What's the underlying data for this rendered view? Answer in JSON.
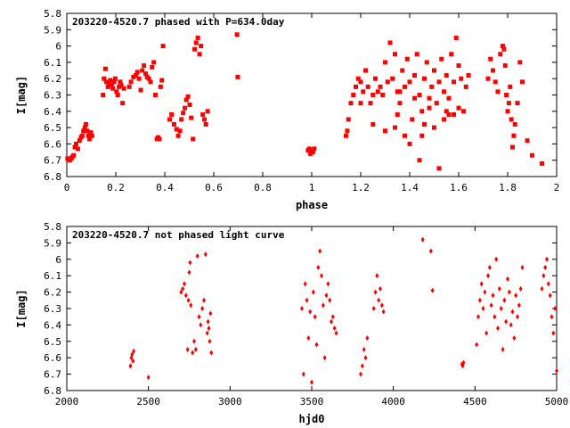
{
  "colors": {
    "points": "#ff0000",
    "axes": "#000000",
    "background": "#ffffff"
  },
  "chart_data": [
    {
      "type": "scatter",
      "title": "203220-4520.7 phased with P=634.0day",
      "xlabel": "phase",
      "ylabel": "I[mag]",
      "xlim": [
        0,
        2
      ],
      "ylim": [
        5.8,
        6.8
      ],
      "y_inverted": true,
      "xticks": [
        0,
        0.2,
        0.4,
        0.6,
        0.8,
        1,
        1.2,
        1.4,
        1.6,
        1.8,
        2
      ],
      "xtick_labels": [
        "0",
        "0.2",
        "0.4",
        "0.6",
        "0.8",
        "1",
        "1.2",
        "1.4",
        "1.6",
        "1.8",
        "2"
      ],
      "yticks": [
        5.8,
        5.9,
        6,
        6.1,
        6.2,
        6.3,
        6.4,
        6.5,
        6.6,
        6.7,
        6.8
      ],
      "ytick_labels": [
        "5.8",
        "5.9",
        "6",
        "6.1",
        "6.2",
        "6.3",
        "6.4",
        "6.5",
        "6.6",
        "6.7",
        "6.8"
      ],
      "marker": "square",
      "x": [
        0.003,
        0.008,
        0.012,
        0.018,
        0.022,
        0.028,
        0.033,
        0.038,
        0.045,
        0.052,
        0.058,
        0.063,
        0.068,
        0.074,
        0.078,
        0.083,
        0.088,
        0.093,
        0.098,
        0.103,
        0.148,
        0.152,
        0.158,
        0.162,
        0.168,
        0.173,
        0.178,
        0.183,
        0.188,
        0.193,
        0.198,
        0.203,
        0.208,
        0.213,
        0.218,
        0.222,
        0.228,
        0.233,
        0.255,
        0.262,
        0.272,
        0.282,
        0.288,
        0.295,
        0.302,
        0.308,
        0.315,
        0.322,
        0.328,
        0.335,
        0.342,
        0.348,
        0.355,
        0.362,
        0.368,
        0.373,
        0.378,
        0.383,
        0.388,
        0.393,
        0.42,
        0.428,
        0.438,
        0.448,
        0.455,
        0.462,
        0.468,
        0.475,
        0.482,
        0.488,
        0.495,
        0.502,
        0.508,
        0.515,
        0.522,
        0.528,
        0.535,
        0.542,
        0.548,
        0.555,
        0.562,
        0.568,
        0.575,
        0.695,
        0.698,
        0.985,
        0.99,
        0.995,
        1.0,
        1.005,
        1.01,
        1.14,
        1.145,
        1.15,
        1.16,
        1.17,
        1.18,
        1.19,
        1.2,
        1.21,
        1.22,
        1.23,
        1.24,
        1.25,
        1.26,
        1.27,
        1.28,
        1.29,
        1.3,
        1.31,
        1.32,
        1.33,
        1.34,
        1.35,
        1.36,
        1.37,
        1.38,
        1.39,
        1.4,
        1.41,
        1.42,
        1.43,
        1.44,
        1.45,
        1.46,
        1.47,
        1.48,
        1.49,
        1.5,
        1.51,
        1.52,
        1.53,
        1.54,
        1.55,
        1.56,
        1.57,
        1.58,
        1.59,
        1.6,
        1.61,
        1.62,
        1.63,
        1.64,
        1.2,
        1.25,
        1.3,
        1.35,
        1.4,
        1.45,
        1.5,
        1.55,
        1.6,
        1.36,
        1.42,
        1.48,
        1.54,
        1.58,
        1.44,
        1.52,
        1.38,
        1.46,
        1.56,
        1.34,
        1.72,
        1.73,
        1.74,
        1.75,
        1.76,
        1.77,
        1.78,
        1.785,
        1.79,
        1.795,
        1.8,
        1.805,
        1.81,
        1.815,
        1.82,
        1.825,
        1.83,
        1.84,
        1.85,
        1.86,
        1.88,
        1.9,
        1.94
      ],
      "y": [
        6.69,
        6.7,
        6.7,
        6.69,
        6.68,
        6.67,
        6.62,
        6.6,
        6.63,
        6.58,
        6.56,
        6.55,
        6.52,
        6.5,
        6.48,
        6.52,
        6.55,
        6.57,
        6.53,
        6.55,
        6.3,
        6.2,
        6.14,
        6.22,
        6.25,
        6.23,
        6.21,
        6.24,
        6.26,
        6.22,
        6.2,
        6.28,
        6.3,
        6.25,
        6.22,
        6.24,
        6.35,
        6.26,
        6.25,
        6.22,
        6.19,
        6.18,
        6.16,
        6.2,
        6.27,
        6.15,
        6.12,
        6.17,
        6.19,
        6.2,
        6.22,
        6.13,
        6.1,
        6.3,
        6.57,
        6.56,
        6.57,
        6.25,
        6.21,
        6.0,
        6.45,
        6.42,
        6.48,
        6.51,
        6.55,
        6.52,
        6.45,
        6.41,
        6.38,
        6.33,
        6.31,
        6.36,
        6.44,
        6.57,
        6.02,
        5.98,
        5.95,
        6.05,
        6.0,
        6.42,
        6.45,
        6.48,
        6.4,
        5.93,
        6.19,
        6.64,
        6.63,
        6.66,
        6.64,
        6.65,
        6.63,
        6.55,
        6.52,
        6.45,
        6.35,
        6.3,
        6.25,
        6.2,
        6.22,
        6.28,
        6.15,
        6.25,
        6.35,
        6.3,
        6.2,
        6.28,
        6.25,
        6.3,
        6.1,
        6.22,
        5.98,
        6.2,
        6.05,
        6.28,
        6.35,
        6.15,
        6.25,
        6.08,
        6.22,
        6.45,
        6.18,
        6.05,
        6.3,
        6.4,
        6.2,
        6.1,
        6.32,
        6.25,
        6.15,
        6.35,
        6.22,
        6.08,
        6.28,
        6.18,
        6.32,
        6.05,
        6.42,
        5.95,
        6.12,
        6.2,
        6.4,
        6.25,
        6.18,
        6.35,
        6.48,
        6.52,
        6.42,
        6.6,
        6.55,
        6.5,
        6.4,
        6.38,
        6.28,
        6.32,
        6.38,
        6.45,
        6.22,
        6.7,
        6.75,
        6.55,
        6.48,
        6.42,
        6.5,
        6.2,
        6.08,
        6.15,
        6.22,
        6.28,
        6.05,
        6.0,
        6.02,
        6.12,
        6.3,
        6.4,
        6.35,
        6.25,
        6.45,
        6.62,
        6.55,
        6.48,
        6.35,
        6.1,
        6.22,
        6.58,
        6.67,
        6.72
      ]
    },
    {
      "type": "scatter",
      "title": "203220-4520.7 not phased light curve",
      "xlabel": "hjd0",
      "ylabel": "I[mag]",
      "xlim": [
        2000,
        5000
      ],
      "ylim": [
        5.8,
        6.8
      ],
      "y_inverted": true,
      "xticks": [
        2000,
        2500,
        3000,
        3500,
        4000,
        4500,
        5000
      ],
      "xtick_labels": [
        "2000",
        "2500",
        "3000",
        "3500",
        "4000",
        "4500",
        "5000"
      ],
      "yticks": [
        5.8,
        5.9,
        6,
        6.1,
        6.2,
        6.3,
        6.4,
        6.5,
        6.6,
        6.7,
        6.8
      ],
      "ytick_labels": [
        "5.8",
        "5.9",
        "6",
        "6.1",
        "6.2",
        "6.3",
        "6.4",
        "6.5",
        "6.6",
        "6.7",
        "6.8"
      ],
      "marker": "diamond",
      "x": [
        2390,
        2395,
        2400,
        2405,
        2410,
        2500,
        2700,
        2710,
        2720,
        2730,
        2740,
        2745,
        2750,
        2755,
        2760,
        2770,
        2780,
        2790,
        2800,
        2810,
        2820,
        2830,
        2840,
        2850,
        2860,
        2865,
        2870,
        2875,
        2880,
        2885,
        3440,
        3450,
        3460,
        3470,
        3480,
        3490,
        3500,
        3510,
        3520,
        3530,
        3540,
        3550,
        3560,
        3570,
        3580,
        3590,
        3600,
        3610,
        3620,
        3630,
        3640,
        3650,
        3800,
        3810,
        3820,
        3830,
        3840,
        3880,
        3890,
        3900,
        3910,
        3920,
        3930,
        3940,
        4180,
        4230,
        4240,
        4420,
        4425,
        4430,
        4510,
        4520,
        4530,
        4540,
        4550,
        4560,
        4570,
        4580,
        4590,
        4600,
        4610,
        4620,
        4630,
        4640,
        4650,
        4660,
        4670,
        4680,
        4690,
        4700,
        4710,
        4720,
        4730,
        4740,
        4750,
        4760,
        4770,
        4780,
        4790,
        4910,
        4920,
        4930,
        4940,
        4950,
        4960,
        4970,
        4980,
        4990,
        5000
      ],
      "y": [
        6.65,
        6.6,
        6.58,
        6.62,
        6.56,
        6.72,
        6.2,
        6.18,
        6.15,
        6.22,
        6.55,
        6.25,
        6.08,
        6.02,
        6.28,
        6.57,
        6.5,
        6.55,
        5.98,
        6.35,
        6.4,
        6.3,
        6.25,
        5.97,
        6.45,
        6.38,
        6.42,
        6.5,
        6.33,
        6.57,
        6.3,
        6.7,
        6.15,
        6.25,
        6.48,
        6.32,
        6.75,
        6.2,
        6.35,
        6.52,
        6.05,
        5.95,
        6.1,
        6.28,
        6.6,
        6.22,
        6.15,
        6.25,
        6.38,
        6.35,
        6.42,
        6.45,
        6.7,
        6.65,
        6.55,
        6.6,
        6.48,
        6.3,
        6.2,
        6.1,
        6.25,
        6.18,
        6.28,
        6.32,
        5.88,
        5.95,
        6.19,
        6.64,
        6.65,
        6.63,
        6.52,
        6.35,
        6.25,
        6.15,
        6.3,
        6.2,
        6.45,
        6.1,
        6.05,
        6.28,
        6.22,
        6.35,
        6.0,
        6.42,
        6.18,
        6.3,
        6.55,
        6.25,
        6.38,
        6.12,
        6.2,
        6.4,
        6.32,
        6.48,
        6.22,
        6.35,
        6.28,
        6.18,
        6.05,
        6.18,
        6.1,
        6.05,
        6.0,
        6.15,
        6.22,
        6.35,
        6.45,
        6.3,
        6.68
      ]
    }
  ]
}
